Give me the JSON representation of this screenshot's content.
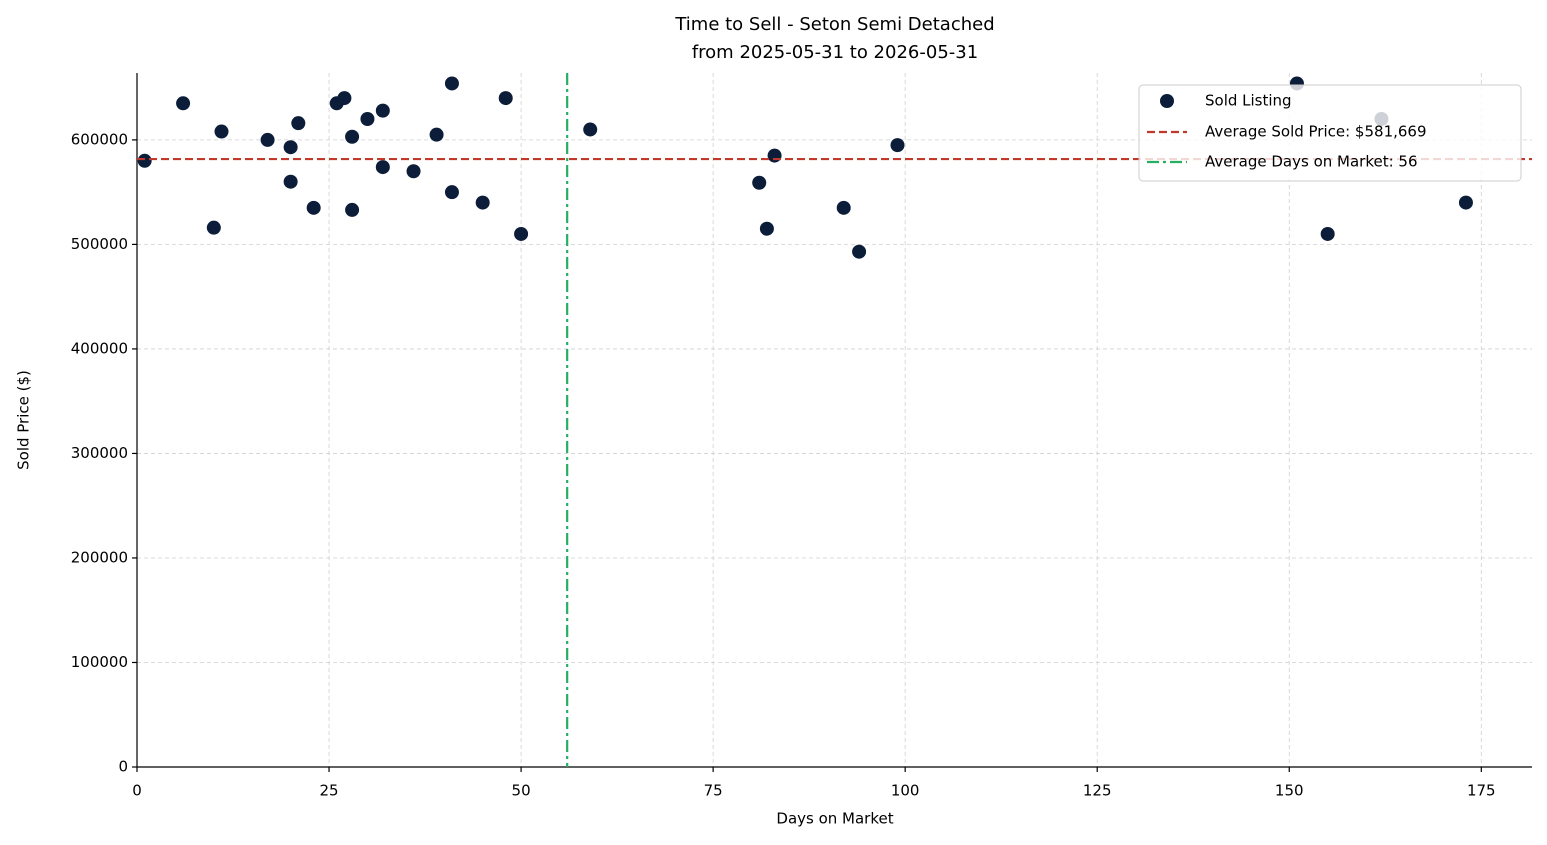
{
  "chart_data": {
    "type": "scatter",
    "title": "Time to Sell - Seton Semi Detached",
    "subtitle": "from 2025-05-31 to 2026-05-31",
    "x_label": "Days on Market",
    "y_label": "Sold Price ($)",
    "xlim": [
      0,
      181.6
    ],
    "ylim": [
      0,
      664000
    ],
    "xticks": [
      0,
      25,
      50,
      75,
      100,
      125,
      150,
      175
    ],
    "yticks": [
      0,
      100000,
      200000,
      300000,
      400000,
      500000,
      600000
    ],
    "grid": true,
    "legend": "upper right",
    "series": [
      {
        "name": "Sold Listing",
        "color": "#0b1d38",
        "x": [
          1,
          6,
          10,
          11,
          17,
          20,
          20,
          21,
          23,
          26,
          27,
          28,
          28,
          30,
          32,
          32,
          36,
          39,
          41,
          41,
          45,
          48,
          50,
          59,
          81,
          82,
          83,
          92,
          94,
          99,
          151,
          155,
          162,
          173
        ],
        "values": [
          580000,
          635000,
          516000,
          608000,
          600000,
          593000,
          560000,
          616000,
          535000,
          635000,
          640000,
          603000,
          533000,
          620000,
          628000,
          574000,
          570000,
          605000,
          654000,
          550000,
          540000,
          640000,
          510000,
          610000,
          559000,
          515000,
          585000,
          535000,
          493000,
          595000,
          654000,
          510000,
          620000,
          540000
        ]
      }
    ],
    "hline": {
      "name": "Average Sold Price: $581,669",
      "value": 581669,
      "color": "#c0392b"
    },
    "vline": {
      "name": "Average Days on Market: 56",
      "value": 56,
      "color": "#27ae60"
    }
  }
}
